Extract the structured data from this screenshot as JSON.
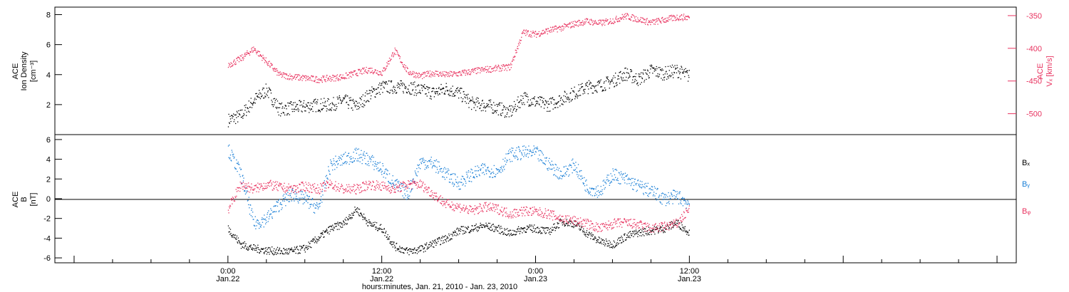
{
  "colors": {
    "black": "#000000",
    "red": "#e8325f",
    "blue": "#1a7fd6"
  },
  "chart_data": [
    {
      "type": "scatter",
      "panel": "top",
      "ylabel_lines": [
        "ACE",
        "Ion Density",
        "[cm⁻³]"
      ],
      "ylim": [
        0,
        8.5
      ],
      "yticks": [
        2,
        4,
        6,
        8
      ],
      "y2label_lines": [
        "ACE",
        "Vₓ [km/s]"
      ],
      "y2lim": [
        -532,
        -337
      ],
      "y2ticks": [
        -350,
        -400,
        -450,
        -500
      ],
      "series": [
        {
          "name": "",
          "axis": "left",
          "color": "#000000",
          "x": [
            0,
            1,
            2,
            3,
            4,
            5,
            6,
            7,
            8,
            9,
            10,
            11,
            12,
            13,
            14,
            15,
            16,
            17,
            18,
            19,
            20,
            21,
            22,
            23,
            24,
            25,
            26,
            27,
            28,
            29,
            30,
            31,
            32,
            33,
            34,
            35,
            36
          ],
          "y": [
            1.0,
            1.3,
            2.3,
            3.0,
            1.7,
            1.8,
            1.9,
            2.0,
            2.0,
            2.3,
            1.9,
            2.7,
            3.2,
            3.2,
            3.2,
            3.0,
            2.8,
            3.1,
            2.8,
            2.1,
            2.0,
            1.8,
            1.5,
            2.5,
            2.2,
            2.0,
            2.4,
            2.8,
            3.2,
            3.3,
            3.6,
            4.1,
            3.7,
            4.3,
            4.1,
            4.3,
            3.9
          ]
        },
        {
          "name": "",
          "axis": "right",
          "color": "#e8325f",
          "x": [
            0,
            1,
            2,
            3,
            4,
            5,
            6,
            7,
            8,
            9,
            10,
            11,
            12,
            13,
            14,
            15,
            16,
            17,
            18,
            19,
            20,
            21,
            22,
            23,
            24,
            25,
            26,
            27,
            28,
            29,
            30,
            31,
            32,
            33,
            34,
            35,
            36
          ],
          "y": [
            -425,
            -415,
            -400,
            -420,
            -440,
            -443,
            -445,
            -447,
            -445,
            -443,
            -437,
            -432,
            -437,
            -403,
            -435,
            -442,
            -437,
            -440,
            -438,
            -435,
            -432,
            -430,
            -428,
            -375,
            -378,
            -372,
            -368,
            -362,
            -358,
            -361,
            -357,
            -350,
            -355,
            -360,
            -356,
            -352,
            -352
          ]
        }
      ]
    },
    {
      "type": "scatter",
      "panel": "bottom",
      "ylabel_lines": [
        "ACE",
        "B",
        "[nT]"
      ],
      "ylim": [
        -6.5,
        6.5
      ],
      "yticks": [
        -6,
        -4,
        -2,
        0,
        2,
        4,
        6
      ],
      "legend": [
        "Bₓ",
        "Bᵧ",
        "Bᵩ"
      ],
      "series": [
        {
          "name": "Bₓ",
          "color": "#000000",
          "x": [
            0,
            1,
            2,
            3,
            4,
            5,
            6,
            7,
            8,
            9,
            10,
            11,
            12,
            13,
            14,
            15,
            16,
            17,
            18,
            19,
            20,
            21,
            22,
            23,
            24,
            25,
            26,
            27,
            28,
            29,
            30,
            31,
            32,
            33,
            34,
            35,
            36
          ],
          "y": [
            -3.0,
            -4.6,
            -5.0,
            -5.2,
            -5.3,
            -5.3,
            -5.0,
            -4.0,
            -3.0,
            -2.5,
            -1.0,
            -2.5,
            -3.0,
            -4.8,
            -5.3,
            -5.1,
            -4.5,
            -4.0,
            -3.2,
            -3.0,
            -2.7,
            -3.0,
            -3.5,
            -3.0,
            -3.0,
            -3.3,
            -2.3,
            -2.5,
            -3.5,
            -4.3,
            -4.6,
            -3.8,
            -3.4,
            -3.2,
            -3.0,
            -2.4,
            -3.4
          ]
        },
        {
          "name": "Bᵧ",
          "color": "#1a7fd6",
          "x": [
            0,
            1,
            2,
            3,
            4,
            5,
            6,
            7,
            8,
            9,
            10,
            11,
            12,
            13,
            14,
            15,
            16,
            17,
            18,
            19,
            20,
            21,
            22,
            23,
            24,
            25,
            26,
            27,
            28,
            29,
            30,
            31,
            32,
            33,
            34,
            35,
            36
          ],
          "y": [
            5.0,
            2.5,
            -2.5,
            -2.0,
            -0.5,
            0.5,
            0.0,
            -1.0,
            3.5,
            4.0,
            4.5,
            4.0,
            3.0,
            1.5,
            0.5,
            3.8,
            3.6,
            2.5,
            1.6,
            2.5,
            3.0,
            2.8,
            4.5,
            4.7,
            4.7,
            3.5,
            2.5,
            3.5,
            1.2,
            0.8,
            2.5,
            2.0,
            1.3,
            0.8,
            0.0,
            0.3,
            -0.5
          ]
        },
        {
          "name": "Bᵩ",
          "color": "#e8325f",
          "x": [
            0,
            1,
            2,
            3,
            4,
            5,
            6,
            7,
            8,
            9,
            10,
            11,
            12,
            13,
            14,
            15,
            16,
            17,
            18,
            19,
            20,
            21,
            22,
            23,
            24,
            25,
            26,
            27,
            28,
            29,
            30,
            31,
            32,
            33,
            34,
            35,
            36
          ],
          "y": [
            -1.0,
            1.5,
            1.0,
            1.5,
            1.2,
            1.0,
            1.3,
            1.0,
            1.5,
            1.0,
            1.0,
            1.5,
            1.3,
            1.0,
            1.5,
            1.5,
            0.5,
            -0.5,
            -0.8,
            -1.2,
            -0.8,
            -1.0,
            -1.5,
            -1.2,
            -1.3,
            -1.5,
            -2.0,
            -2.2,
            -2.5,
            -3.0,
            -2.5,
            -2.4,
            -2.6,
            -3.0,
            -2.8,
            -2.5,
            -1.0
          ]
        }
      ]
    }
  ],
  "x_axis": {
    "start_hours": -13.5,
    "end_hours": 61.5,
    "data_end_hours": 36,
    "ticks": [
      {
        "hours": 0,
        "time": "0:00",
        "date": "Jan.22"
      },
      {
        "hours": 12,
        "time": "12:00",
        "date": "Jan.22"
      },
      {
        "hours": 24,
        "time": "0:00",
        "date": "Jan.23"
      },
      {
        "hours": 36,
        "time": "12:00",
        "date": "Jan.23"
      }
    ],
    "label": "hours:minutes, Jan. 21, 2010 - Jan. 23, 2010"
  }
}
